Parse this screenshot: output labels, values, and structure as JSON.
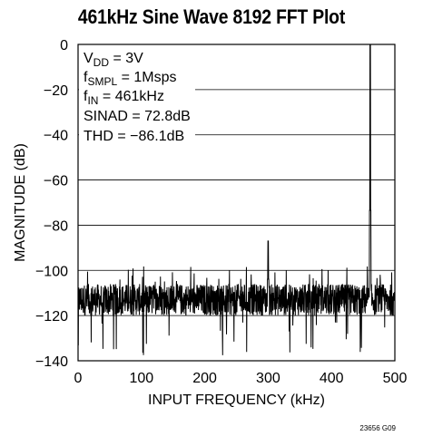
{
  "chart_data": {
    "type": "line",
    "title": "461kHz Sine Wave 8192 FFT Plot",
    "xlabel": "INPUT FREQUENCY (kHz)",
    "ylabel": "MAGNITUDE (dB)",
    "xlim": [
      0,
      500
    ],
    "ylim": [
      -140,
      0
    ],
    "xticks": [
      0,
      100,
      200,
      300,
      400,
      500
    ],
    "yticks": [
      0,
      -20,
      -40,
      -60,
      -80,
      -100,
      -120,
      -140
    ],
    "xtick_labels": [
      "0",
      "100",
      "200",
      "300",
      "400",
      "500"
    ],
    "ytick_labels": [
      "0",
      "−20",
      "−40",
      "−60",
      "−80",
      "−100",
      "−120",
      "−140"
    ],
    "grid": "horizontal",
    "noise_floor_db": -113,
    "noise_range_db": [
      -138,
      -98
    ],
    "peaks": [
      {
        "x": 461,
        "y": 0
      },
      {
        "x": 300,
        "y": -87
      }
    ],
    "annotations": {
      "vdd": {
        "main": "V",
        "sub": "DD",
        "rest": " = 3V"
      },
      "fsmpl": {
        "main": "f",
        "sub": "SMPL",
        "rest": " = 1Msps"
      },
      "fin": {
        "main": "f",
        "sub": "IN",
        "rest": " = 461kHz"
      },
      "sinad": "SINAD = 72.8dB",
      "thd": "THD = −86.1dB"
    },
    "line_color": "#000000"
  },
  "figure_code": "23656 G09"
}
